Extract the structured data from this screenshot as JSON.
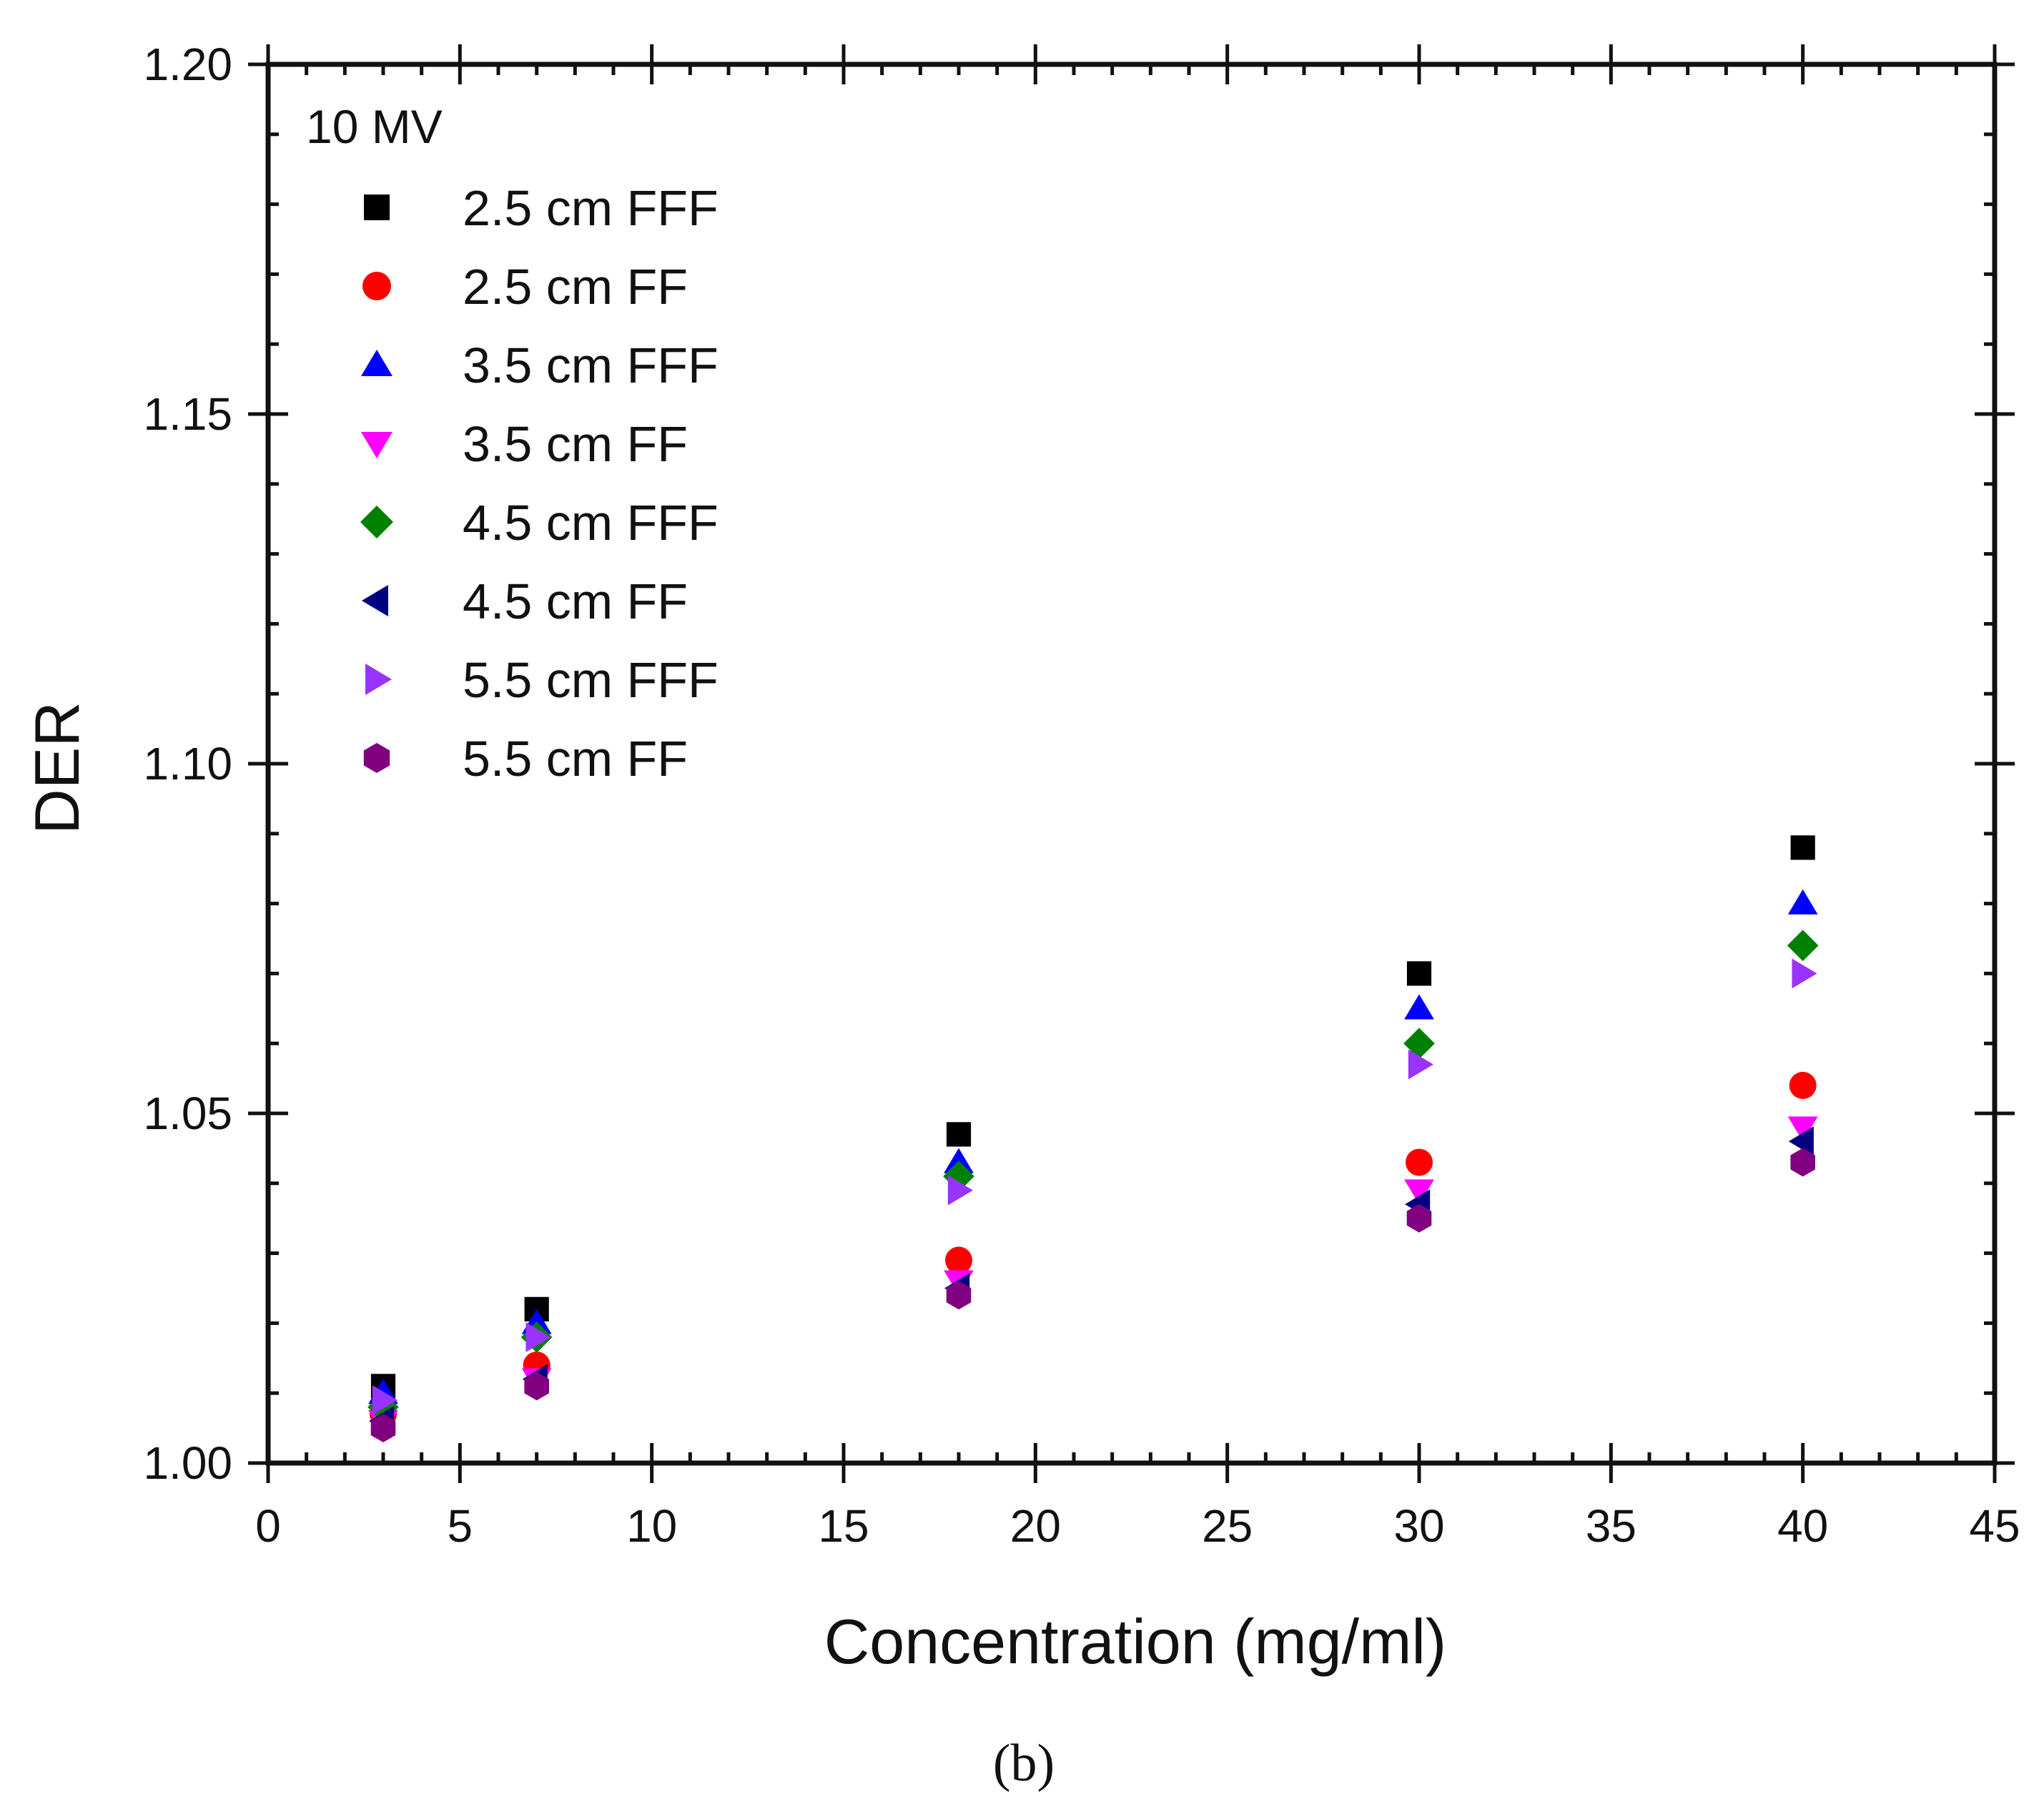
{
  "chart_data": {
    "type": "scatter",
    "title": "",
    "annotation": "10 MV",
    "panel_label": "(b)",
    "xlabel": "Concentration (mg/ml)",
    "ylabel": "DER",
    "xlim": [
      0,
      45
    ],
    "ylim": [
      1.0,
      1.2
    ],
    "x_major_ticks": [
      0,
      5,
      10,
      15,
      20,
      25,
      30,
      35,
      40,
      45
    ],
    "x_tick_labels": [
      "0",
      "5",
      "10",
      "15",
      "20",
      "25",
      "30",
      "35",
      "40",
      "45"
    ],
    "y_major_ticks": [
      1.0,
      1.05,
      1.1,
      1.15,
      1.2
    ],
    "y_tick_labels": [
      "1.00",
      "1.05",
      "1.10",
      "1.15",
      "1.20"
    ],
    "x_minor_step": 1,
    "y_minor_step": 0.01,
    "grid": false,
    "legend_position": "top-left",
    "x": [
      3,
      7,
      18,
      30,
      40
    ],
    "series": [
      {
        "name": "2.5 cm FFF",
        "marker": "square",
        "color": "#000000",
        "values": [
          1.011,
          1.022,
          1.047,
          1.07,
          1.088
        ]
      },
      {
        "name": "2.5 cm FF",
        "marker": "circle",
        "color": "#ff0000",
        "values": [
          1.007,
          1.014,
          1.029,
          1.043,
          1.054
        ]
      },
      {
        "name": "3.5 cm FFF",
        "marker": "triangle-up",
        "color": "#0000ff",
        "values": [
          1.01,
          1.02,
          1.043,
          1.065,
          1.08
        ]
      },
      {
        "name": "3.5 cm FF",
        "marker": "triangle-down",
        "color": "#ff00ff",
        "values": [
          1.006,
          1.012,
          1.026,
          1.039,
          1.048
        ]
      },
      {
        "name": "4.5 cm FFF",
        "marker": "diamond",
        "color": "#008000",
        "values": [
          1.008,
          1.018,
          1.041,
          1.06,
          1.074
        ]
      },
      {
        "name": "4.5 cm FF",
        "marker": "triangle-left",
        "color": "#000080",
        "values": [
          1.006,
          1.012,
          1.025,
          1.037,
          1.046
        ]
      },
      {
        "name": "5.5 cm FFF",
        "marker": "triangle-right",
        "color": "#9933ff",
        "values": [
          1.009,
          1.018,
          1.039,
          1.057,
          1.07
        ]
      },
      {
        "name": "5.5 cm FF",
        "marker": "hexagon",
        "color": "#800080",
        "values": [
          1.005,
          1.011,
          1.024,
          1.035,
          1.043
        ]
      }
    ]
  }
}
